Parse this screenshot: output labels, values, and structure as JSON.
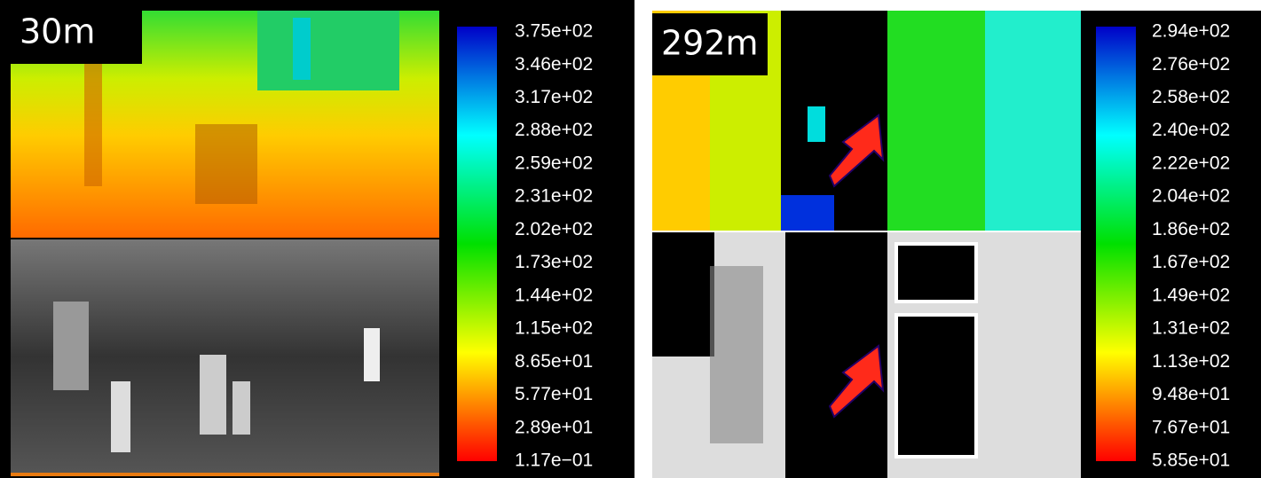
{
  "panels": [
    {
      "label": "30m",
      "colorbar_ticks": [
        "3.75e+02",
        "3.46e+02",
        "3.17e+02",
        "2.88e+02",
        "2.59e+02",
        "2.31e+02",
        "2.02e+02",
        "1.73e+02",
        "1.44e+02",
        "1.15e+02",
        "8.65e+01",
        "5.77e+01",
        "2.89e+01",
        "1.17e−01"
      ]
    },
    {
      "label": "292m",
      "colorbar_ticks": [
        "2.94e+02",
        "2.76e+02",
        "2.58e+02",
        "2.40e+02",
        "2.22e+02",
        "2.04e+02",
        "1.86e+02",
        "1.67e+02",
        "1.49e+02",
        "1.31e+02",
        "1.13e+02",
        "9.48e+01",
        "7.67e+01",
        "5.85e+01"
      ]
    }
  ]
}
